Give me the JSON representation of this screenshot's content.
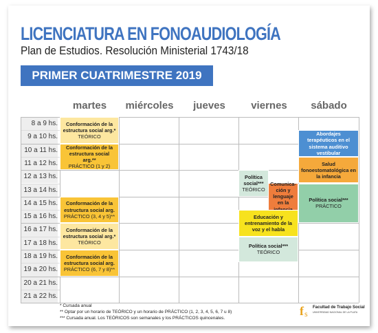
{
  "header": {
    "title": "LICENCIATURA EN FONOAUDIOLOGÍA",
    "subtitle": "Plan de Estudios. Resolución Ministerial 1743/18",
    "banner": "PRIMER CUATRIMESTRE 2019"
  },
  "days": [
    "martes",
    "miércoles",
    "jueves",
    "viernes",
    "sábado"
  ],
  "times": [
    "8 a 9 hs.",
    "9 a 10 hs.",
    "10 a 11 hs.",
    "11 a 12 hs.",
    "12 a 13 hs.",
    "13 a 14 hs.",
    "14 a 15 hs.",
    "15 a 16 hs.",
    "16 a 17 hs.",
    "17 a 18 hs.",
    "18 a 19 hs.",
    "19 a 20 hs.",
    "20 a 21 hs.",
    "21 a 22 hs."
  ],
  "blocks": [
    {
      "title": "Conformación de la estructura social arg.*",
      "detail": "TEÓRICO"
    },
    {
      "title": "Conformación de la estructura social arg.**",
      "detail": "PRÁCTICO (1 y 2)"
    },
    {
      "title": "Conformación de la estructura social arg.",
      "detail": "PRÁCTICO (3, 4 y 5)**"
    },
    {
      "title": "Conformación de la estructura social arg.*",
      "detail": "TEÓRICO"
    },
    {
      "title": "Conformación de la estructura social arg.",
      "detail": "PRÁCTICO (6, 7 y 8)**"
    },
    {
      "title": "Política social***",
      "detail": "TEÓRICO"
    },
    {
      "title": "Comunica-ción y lenguaje en la infancia"
    },
    {
      "title": "Educación y entrenamiento de la voz y el habla"
    },
    {
      "title": "Política social***",
      "detail": "TEÓRICO"
    },
    {
      "title": "Abordajes terapéuticos en el sistema auditivo vestibular"
    },
    {
      "title": "Salud fonoestomatológica en la infancia"
    },
    {
      "title": "Política social***",
      "detail": "PRÁCTICO"
    }
  ],
  "footnotes": [
    "* Cursada anual",
    "** Optar por un horario de TEÓRICO y un horario de PRÁCTICO (1, 2, 3, 4, 5, 6, 7 u 8)",
    "*** Cursada anual. Los TEÓRICOS son semanales y los PRÁCTICOS quincenales."
  ],
  "logo": {
    "name": "Facultad de Trabajo Social",
    "university": "UNIVERSIDAD NACIONAL DE LA PLATA"
  }
}
